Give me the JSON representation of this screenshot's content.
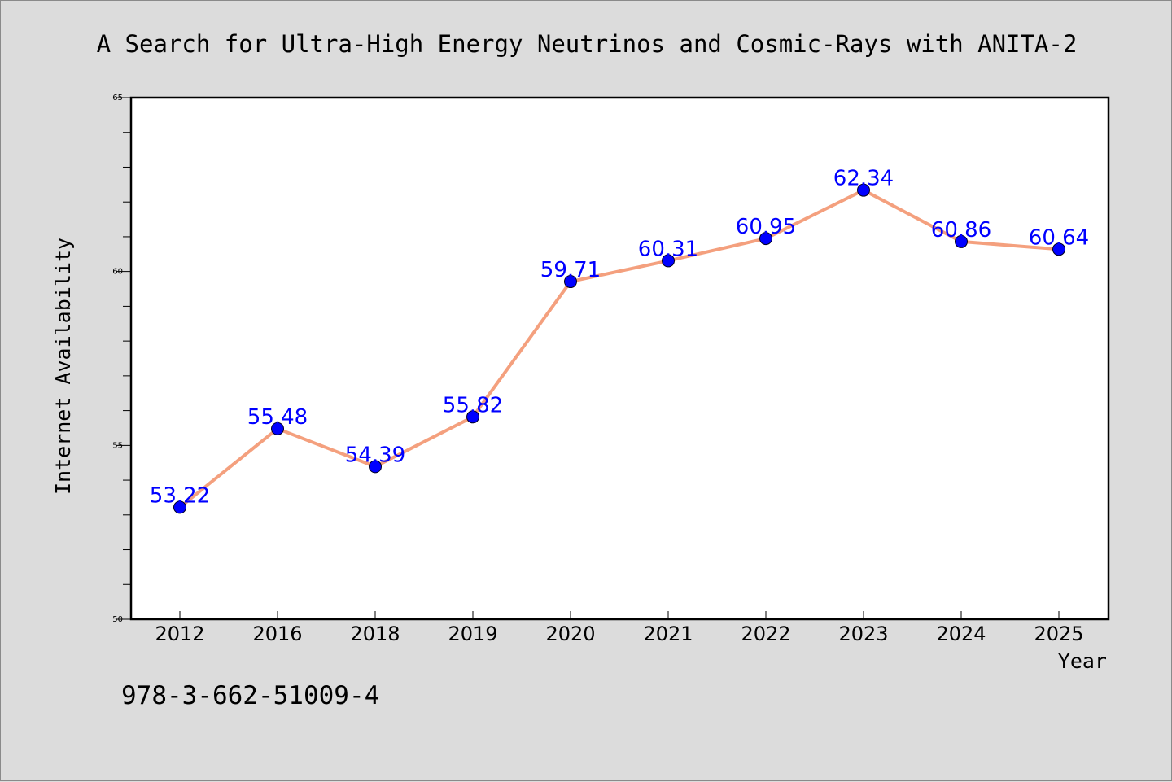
{
  "chart_data": {
    "type": "line",
    "title": "A Search for Ultra-High Energy Neutrinos and Cosmic-Rays with ANITA-2",
    "xlabel": "Year",
    "ylabel": "Internet Availability",
    "categories": [
      "2012",
      "2016",
      "2018",
      "2019",
      "2020",
      "2021",
      "2022",
      "2023",
      "2024",
      "2025"
    ],
    "values": [
      53.22,
      55.48,
      54.39,
      55.82,
      59.71,
      60.31,
      60.95,
      62.34,
      60.86,
      60.64
    ],
    "data_labels": [
      "53.22",
      "55.48",
      "54.39",
      "55.82",
      "59.71",
      "60.31",
      "60.95",
      "62.34",
      "60.86",
      "60.64"
    ],
    "ylim": [
      50,
      65
    ],
    "yticks": [
      "50",
      "55",
      "60",
      "65"
    ],
    "grid": false,
    "line_color": "#f4a07e",
    "marker_color": "#0000ff",
    "label_color": "#0000ff"
  },
  "annotation": {
    "isbn": "978-3-662-51009-4"
  }
}
